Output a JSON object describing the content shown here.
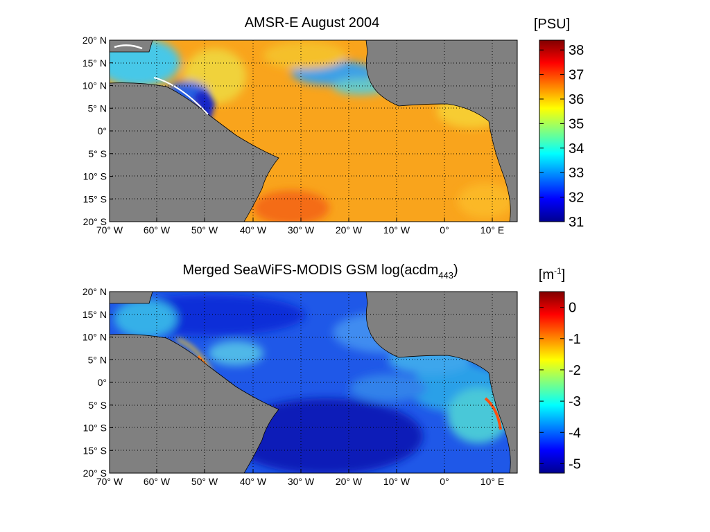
{
  "figure": {
    "panels": [
      {
        "title": "AMSR-E August   2004",
        "colorbar": {
          "units_label": "[PSU]",
          "ticks": [
            "31",
            "32",
            "33",
            "34",
            "35",
            "36",
            "37",
            "38"
          ],
          "range": [
            31,
            38.4
          ]
        }
      },
      {
        "title_main": "Merged SeaWiFS-MODIS GSM log(acdm",
        "title_sub": "443",
        "title_close": ")",
        "colorbar": {
          "units_base": "[m",
          "units_sup": "-1",
          "units_close": "]",
          "ticks": [
            "-5",
            "-4",
            "-3",
            "-2",
            "-1",
            "0"
          ],
          "range": [
            -5.3,
            0.5
          ]
        }
      }
    ],
    "lat_ticks": [
      "20° N",
      "15° N",
      "10° N",
      "5° N",
      "0°",
      "5° S",
      "10° S",
      "15° S",
      "20° S"
    ],
    "lon_ticks": [
      "70° W",
      "60° W",
      "50° W",
      "40° W",
      "30° W",
      "20° W",
      "10° W",
      "0°",
      "10° E"
    ],
    "land_color": "#808080",
    "colormap": "jet"
  }
}
